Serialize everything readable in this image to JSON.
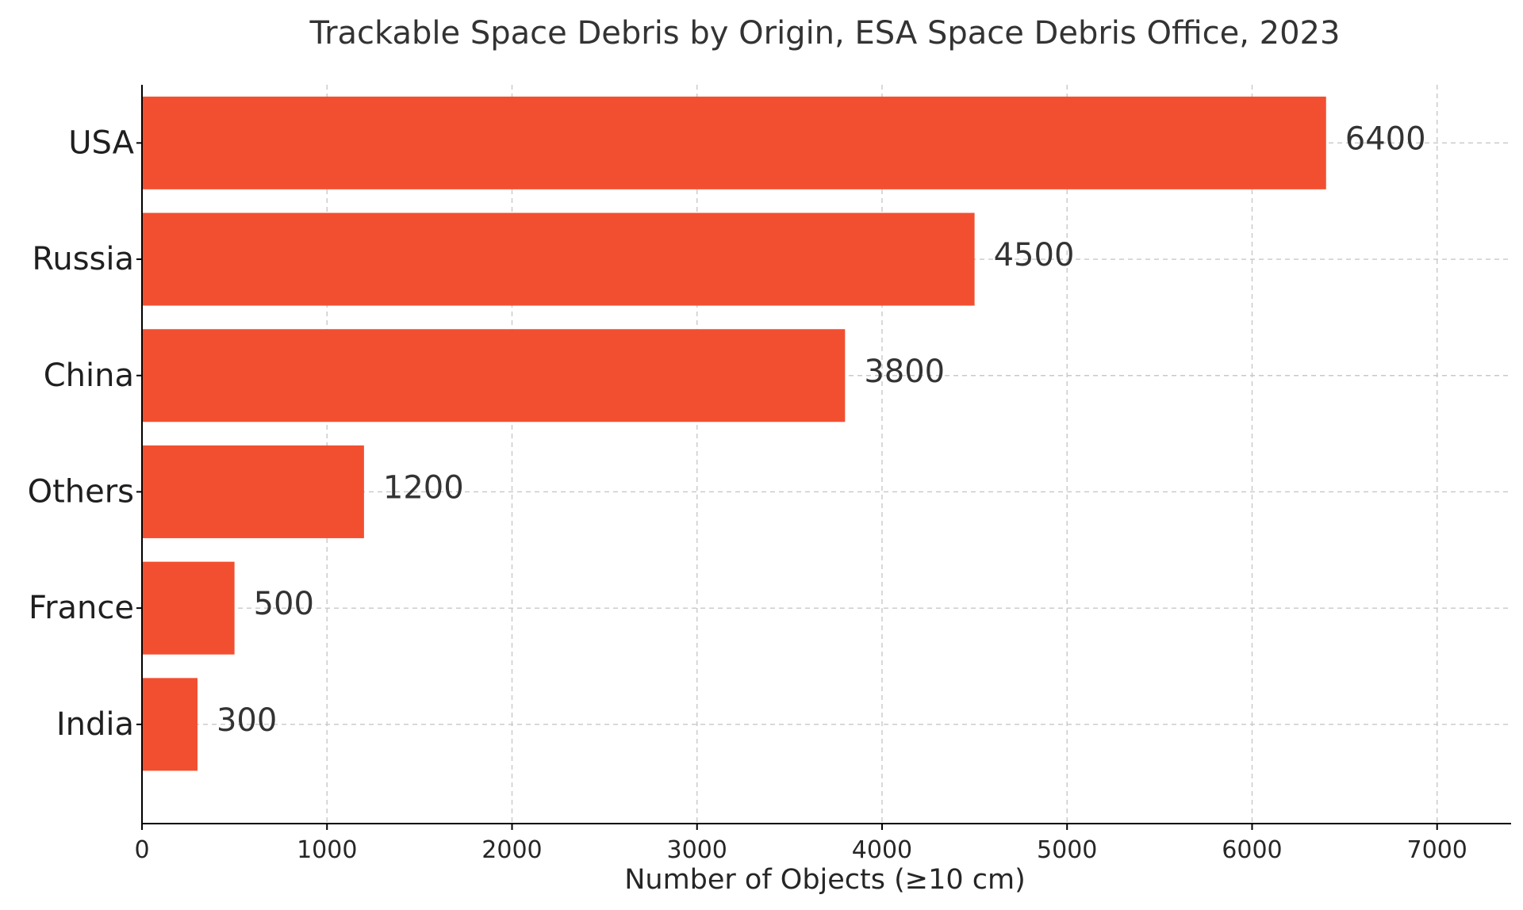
{
  "chart_data": {
    "type": "bar",
    "orientation": "horizontal",
    "title": "Trackable Space Debris by Origin, ESA Space Debris Office, 2023",
    "xlabel": "Number of Objects (≥10 cm)",
    "ylabel": "",
    "categories": [
      "USA",
      "Russia",
      "China",
      "Others",
      "France",
      "India"
    ],
    "values": [
      6400,
      4500,
      3800,
      1200,
      500,
      300
    ],
    "data_labels": [
      "6400",
      "4500",
      "3800",
      "1200",
      "500",
      "300"
    ],
    "xlim": [
      0,
      7400
    ],
    "xticks": [
      0,
      1000,
      2000,
      3000,
      4000,
      5000,
      6000,
      7000
    ],
    "xtick_labels": [
      "0",
      "1000",
      "2000",
      "3000",
      "4000",
      "5000",
      "6000",
      "7000"
    ],
    "grid": true,
    "bar_color": "#F24F30",
    "legend": "none"
  }
}
